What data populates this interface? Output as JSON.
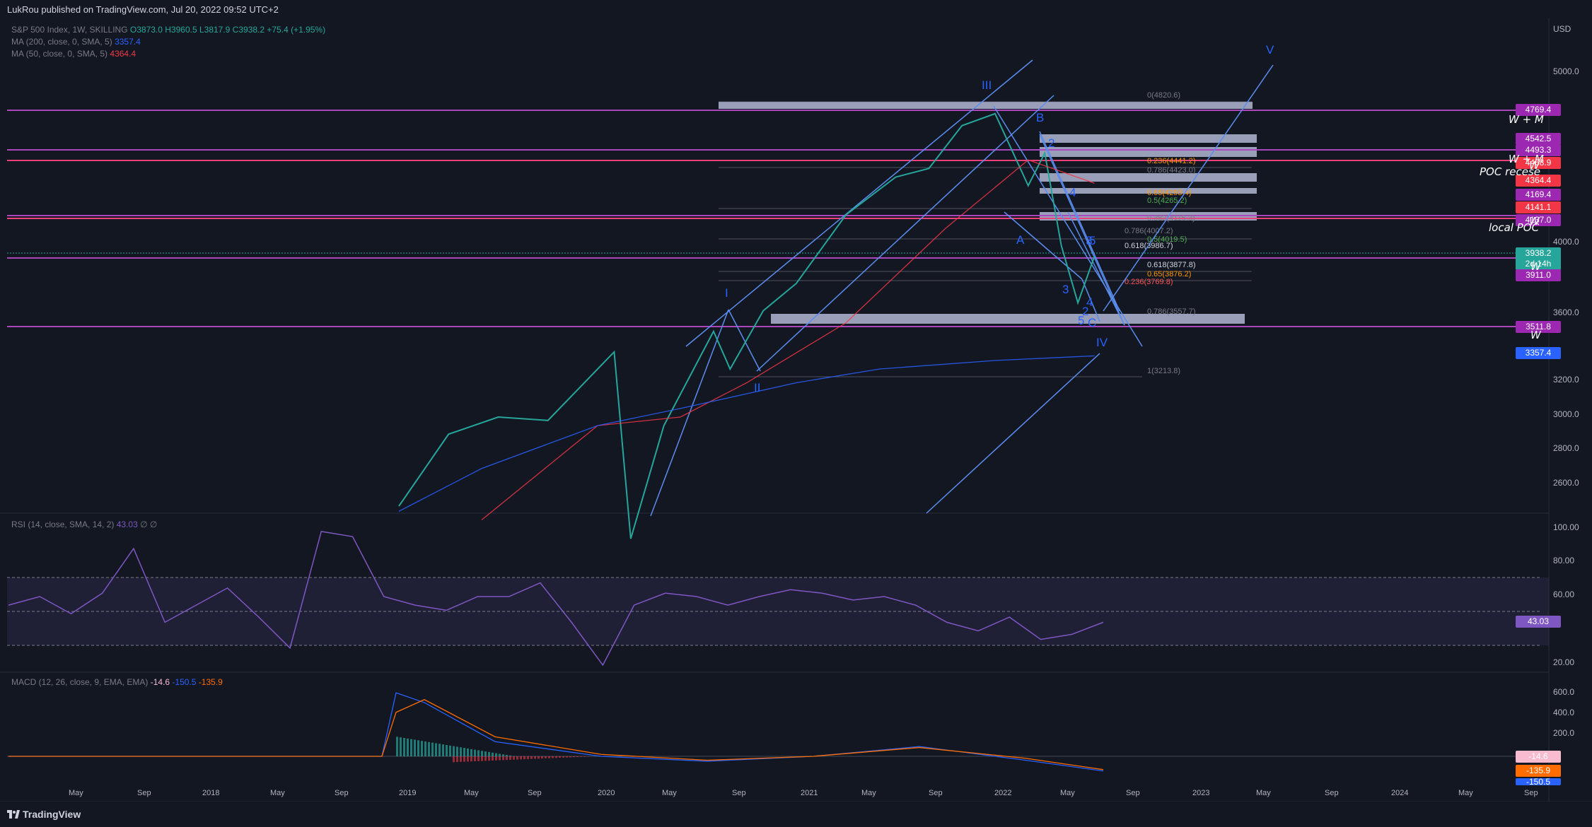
{
  "header": {
    "published_by": "LukRou published on TradingView.com, Jul 20, 2022 09:52 UTC+2"
  },
  "legend": {
    "symbol": "S&P 500 Index, 1W, SKILLING",
    "ohlc": "O3873.0 H3960.5 L3817.9 C3938.2 +75.4 (+1.95%)",
    "ma200_label": "MA (200, close, 0, SMA, 5)",
    "ma200_value": "3357.4",
    "ma50_label": "MA (50, close, 0, SMA, 5)",
    "ma50_value": "4364.4"
  },
  "rsi_legend": {
    "label": "RSI (14, close, SMA, 14, 2)",
    "value": "43.03",
    "extra": "∅ ∅"
  },
  "macd_legend": {
    "label": "MACD (12, 26, close, 9, EMA, EMA)",
    "hist": "-14.6",
    "macd": "-150.5",
    "signal": "-135.9"
  },
  "footer": {
    "brand": "TradingView"
  },
  "price_axis": {
    "currency": "USD",
    "ticks": [
      "5000.0",
      "4400.0",
      "4000.0",
      "3600.0",
      "3400.0",
      "3200.0",
      "3000.0",
      "2800.0",
      "2600.0"
    ],
    "rsi_ticks": [
      "100.00",
      "80.00",
      "60.00",
      "40.00",
      "20.00"
    ],
    "macd_ticks": [
      "600.0",
      "400.0",
      "200.0"
    ]
  },
  "price_badges": [
    {
      "text": "4769.4",
      "color": "#9c27b0"
    },
    {
      "text": "4542.5",
      "color": "#9c27b0"
    },
    {
      "text": "4493.3",
      "color": "#9c27b0"
    },
    {
      "text": "4468.9",
      "color": "#f23645"
    },
    {
      "text": "4364.4",
      "color": "#f23645"
    },
    {
      "text": "4169.4",
      "color": "#9c27b0"
    },
    {
      "text": "4141.1",
      "color": "#f23645"
    },
    {
      "text": "4137.0",
      "color": "#9c27b0"
    },
    {
      "text": "3938.2",
      "color": "#26a69a"
    },
    {
      "text": "2d 14h",
      "color": "#26a69a"
    },
    {
      "text": "3911.0",
      "color": "#9c27b0"
    },
    {
      "text": "3511.8",
      "color": "#9c27b0"
    },
    {
      "text": "3357.4",
      "color": "#2962ff"
    },
    {
      "text": "43.03",
      "color": "#7e57c2"
    },
    {
      "text": "-14.6",
      "color": "#f8bbd0"
    },
    {
      "text": "-135.9",
      "color": "#ff6d00"
    },
    {
      "text": "-150.5",
      "color": "#2962ff"
    }
  ],
  "notes": {
    "wm1": "W + M",
    "wm2": "W + M",
    "poc": "POC recese",
    "local_poc": "local POC",
    "w1": "W",
    "w2": "W",
    "w3": "W",
    "w4": "W"
  },
  "wave_labels": [
    "I",
    "II",
    "III",
    "IV",
    "V",
    "A",
    "B",
    "C",
    "1",
    "2",
    "3",
    "4",
    "5",
    "3",
    "2",
    "4",
    "5",
    "3"
  ],
  "fib_labels": [
    "0(4820.6)",
    "0.236(4441.2)",
    "0.786(4423.0)",
    "0.65(4293.4)",
    "0.5(4265.2)",
    "0.382(4115.3)",
    "0.786(4007.2)",
    "0.5(4019.5)",
    "0.618(3986.7)",
    "0.618(3877.8)",
    "0.65(3876.2)",
    "0.236(3769.8)",
    "0.786(3557.7)",
    "1(3213.8)"
  ],
  "chart_data": {
    "type": "line",
    "title": "S&P 500 Index, 1W, SKILLING",
    "x_ticks": [
      "May",
      "Sep",
      "2018",
      "May",
      "Sep",
      "2019",
      "May",
      "Sep",
      "2020",
      "May",
      "Sep",
      "2021",
      "May",
      "Sep",
      "2022",
      "May",
      "Sep",
      "2023",
      "May",
      "Sep",
      "2024",
      "May",
      "Sep"
    ],
    "y_unit": "USD",
    "ylim": [
      2400,
      5200
    ],
    "series": [
      {
        "name": "S&P 500 Index, 1W, SKILLING",
        "x": [
          "2019-01",
          "2019-04",
          "2019-07",
          "2019-10",
          "2020-01",
          "2020-02",
          "2020-03",
          "2020-05",
          "2020-08",
          "2020-09",
          "2020-11",
          "2021-01",
          "2021-04",
          "2021-07",
          "2021-09",
          "2021-11",
          "2022-01",
          "2022-03",
          "2022-04",
          "2022-05",
          "2022-06",
          "2022-07"
        ],
        "values": [
          2480,
          2900,
          3000,
          2980,
          3280,
          3380,
          2290,
          2950,
          3500,
          3280,
          3620,
          3780,
          4180,
          4400,
          4450,
          4700,
          4770,
          4350,
          4540,
          4000,
          3666,
          3938
        ]
      },
      {
        "name": "MA (200, close, 0, SMA, 5)",
        "x": [
          "2019-01",
          "2019-06",
          "2020-01",
          "2020-06",
          "2021-01",
          "2021-06",
          "2022-01",
          "2022-07"
        ],
        "values": [
          2450,
          2700,
          2950,
          3050,
          3200,
          3280,
          3330,
          3357
        ]
      },
      {
        "name": "MA (50, close, 0, SMA, 5)",
        "x": [
          "2019-06",
          "2020-01",
          "2020-06",
          "2020-10",
          "2021-04",
          "2021-10",
          "2022-03",
          "2022-07"
        ],
        "values": [
          2400,
          2950,
          3000,
          3200,
          3550,
          4100,
          4500,
          4364
        ]
      }
    ],
    "rsi": {
      "label": "RSI (14, close, SMA, 14, 2)",
      "last": 43.03,
      "bands": [
        30,
        50,
        70
      ]
    },
    "macd": {
      "label": "MACD (12, 26, close, 9, EMA, EMA)",
      "histogram": -14.6,
      "macd": -150.5,
      "signal": -135.9
    }
  }
}
